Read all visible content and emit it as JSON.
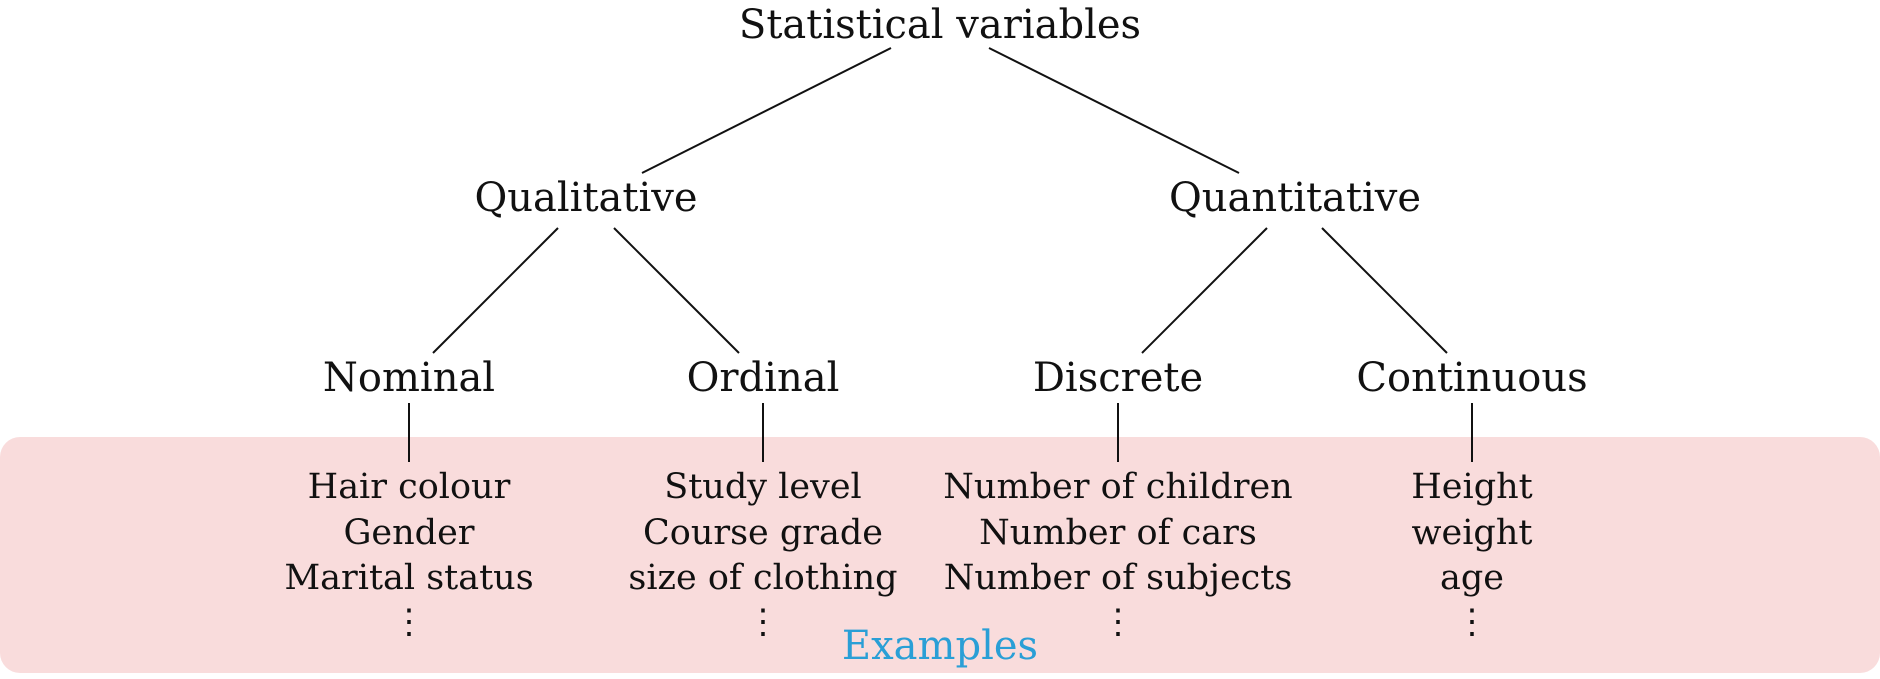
{
  "colors": {
    "panel_fill": "#f9dcdc",
    "caption_color": "#2a9fd6",
    "line_color": "#111111",
    "text_color": "#111111"
  },
  "nodes": {
    "root": "Statistical variables",
    "qualitative": "Qualitative",
    "quantitative": "Quantitative",
    "nominal": "Nominal",
    "ordinal": "Ordinal",
    "discrete": "Discrete",
    "continuous": "Continuous"
  },
  "examples": {
    "nominal": [
      "Hair colour",
      "Gender",
      "Marital status",
      "⋮"
    ],
    "ordinal": [
      "Study level",
      "Course grade",
      "size of clothing",
      "⋮"
    ],
    "discrete": [
      "Number of children",
      "Number of cars",
      "Number of subjects",
      "⋮"
    ],
    "continuous": [
      "Height",
      "weight",
      "age",
      "⋮"
    ]
  },
  "panel": {
    "caption": "Examples"
  }
}
